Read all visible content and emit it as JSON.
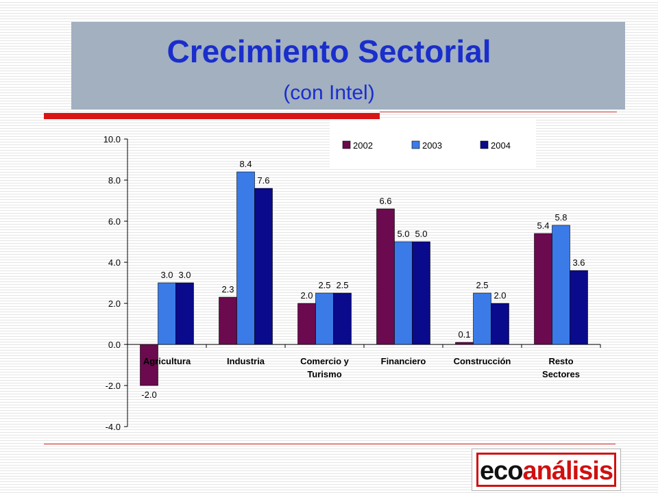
{
  "slide": {
    "title": "Crecimiento Sectorial",
    "subtitle": "(con Intel)"
  },
  "logo": {
    "part1": "eco",
    "part2": "análisis"
  },
  "colors": {
    "title": "#1a2ecc",
    "title_bg": "#a2b0c0",
    "accent_red": "#d91414",
    "s2002": "#6b0a4e",
    "s2003": "#3b7be8",
    "s2004": "#0a0a8c"
  },
  "chart_data": {
    "type": "bar",
    "categories": [
      "Agricultura",
      "Industria",
      "Comercio y Turismo",
      "Financiero",
      "Construcción",
      "Resto Sectores"
    ],
    "category_lines": [
      [
        "Agricultura"
      ],
      [
        "Industria"
      ],
      [
        "Comercio y",
        "Turismo"
      ],
      [
        "Financiero"
      ],
      [
        "Construcción"
      ],
      [
        "Resto",
        "Sectores"
      ]
    ],
    "series": [
      {
        "name": "2002",
        "values": [
          -2.0,
          2.3,
          2.0,
          6.6,
          0.1,
          5.4
        ],
        "color": "#6b0a4e"
      },
      {
        "name": "2003",
        "values": [
          3.0,
          8.4,
          2.5,
          5.0,
          2.5,
          5.8
        ],
        "color": "#3b7be8"
      },
      {
        "name": "2004",
        "values": [
          3.0,
          7.6,
          2.5,
          5.0,
          2.0,
          3.6
        ],
        "color": "#0a0a8c"
      }
    ],
    "ylim": [
      -4.0,
      10.0
    ],
    "yticks": [
      -4.0,
      -2.0,
      0.0,
      2.0,
      4.0,
      6.0,
      8.0,
      10.0
    ],
    "data_labels": true,
    "grid": false,
    "legend_position": "top-right",
    "title": "",
    "xlabel": "",
    "ylabel": ""
  }
}
